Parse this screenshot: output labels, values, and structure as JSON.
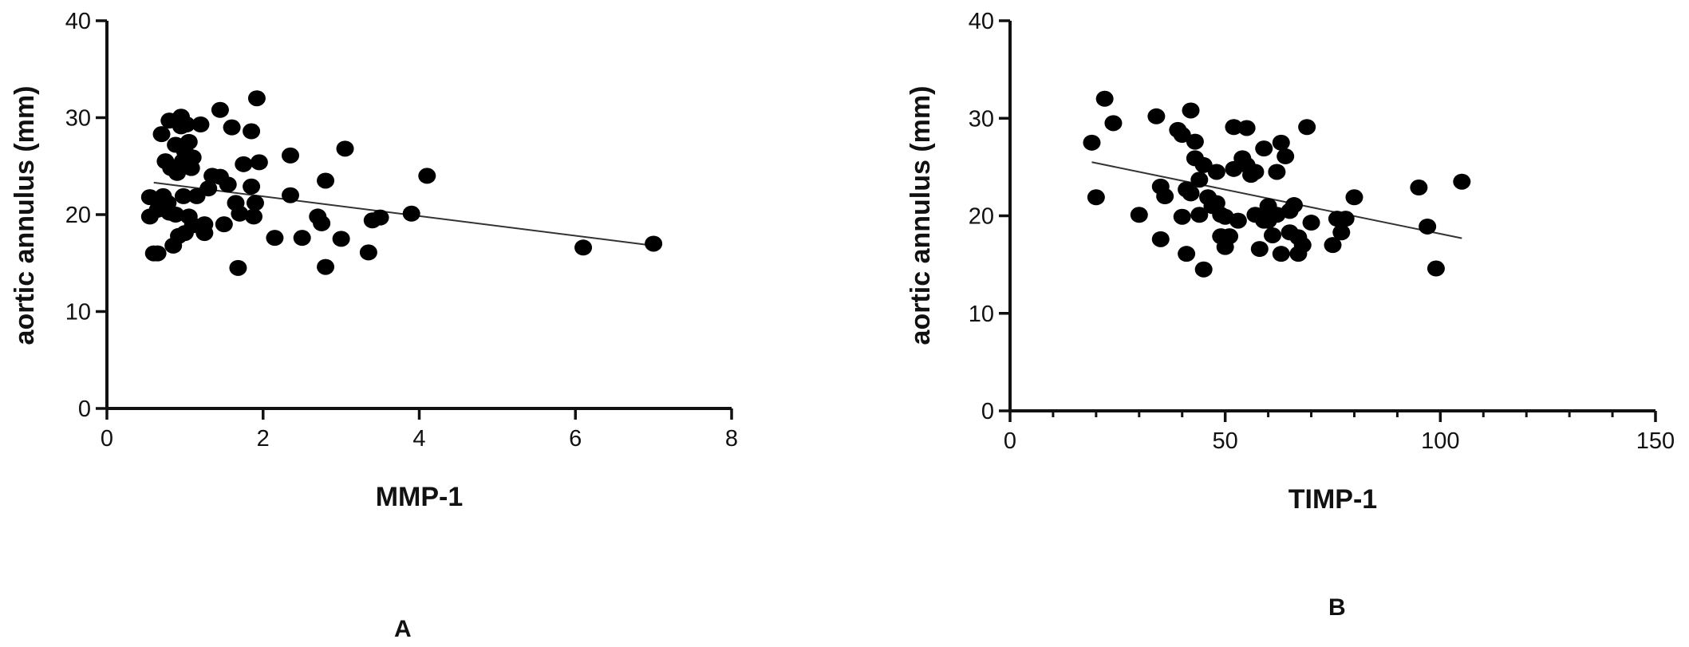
{
  "panels": [
    {
      "label": "A",
      "chart_data": {
        "type": "scatter",
        "title": "",
        "xlabel": "MMP-1",
        "ylabel": "aortic annulus (mm)",
        "xlim": [
          0,
          8
        ],
        "ylim": [
          0,
          40
        ],
        "xticks": [
          0,
          2,
          4,
          6,
          8
        ],
        "yticks": [
          0,
          10,
          20,
          30,
          40
        ],
        "minor_xticks": false,
        "grid": false,
        "trendline": {
          "x1": 0.6,
          "y1": 23.3,
          "x2": 7.0,
          "y2": 16.8
        },
        "points": [
          [
            0.55,
            21.8
          ],
          [
            0.55,
            19.8
          ],
          [
            0.6,
            16.0
          ],
          [
            0.65,
            16.0
          ],
          [
            0.65,
            20.5
          ],
          [
            0.7,
            28.3
          ],
          [
            0.72,
            21.9
          ],
          [
            0.75,
            25.5
          ],
          [
            0.78,
            21.2
          ],
          [
            0.8,
            29.7
          ],
          [
            0.8,
            20.2
          ],
          [
            0.82,
            24.8
          ],
          [
            0.85,
            16.8
          ],
          [
            0.88,
            27.2
          ],
          [
            0.88,
            20.0
          ],
          [
            0.9,
            24.3
          ],
          [
            0.92,
            17.8
          ],
          [
            0.95,
            30.1
          ],
          [
            0.95,
            29.1
          ],
          [
            0.97,
            25.5
          ],
          [
            0.98,
            21.9
          ],
          [
            1.0,
            26.5
          ],
          [
            1.0,
            18.1
          ],
          [
            1.02,
            29.3
          ],
          [
            1.05,
            19.8
          ],
          [
            1.05,
            27.5
          ],
          [
            1.08,
            24.8
          ],
          [
            1.1,
            25.9
          ],
          [
            1.1,
            18.9
          ],
          [
            1.15,
            21.9
          ],
          [
            1.2,
            29.3
          ],
          [
            1.25,
            19.0
          ],
          [
            1.25,
            18.1
          ],
          [
            1.3,
            22.7
          ],
          [
            1.35,
            24.0
          ],
          [
            1.45,
            23.9
          ],
          [
            1.45,
            30.8
          ],
          [
            1.5,
            19.0
          ],
          [
            1.55,
            23.1
          ],
          [
            1.6,
            29.0
          ],
          [
            1.65,
            21.2
          ],
          [
            1.68,
            14.5
          ],
          [
            1.7,
            20.1
          ],
          [
            1.75,
            25.2
          ],
          [
            1.85,
            28.6
          ],
          [
            1.85,
            22.9
          ],
          [
            1.88,
            19.8
          ],
          [
            1.9,
            21.2
          ],
          [
            1.92,
            32.0
          ],
          [
            1.95,
            25.4
          ],
          [
            2.15,
            17.6
          ],
          [
            2.35,
            26.1
          ],
          [
            2.35,
            22.0
          ],
          [
            2.5,
            17.6
          ],
          [
            2.7,
            19.8
          ],
          [
            2.75,
            19.1
          ],
          [
            2.8,
            23.5
          ],
          [
            2.8,
            14.6
          ],
          [
            3.0,
            17.5
          ],
          [
            3.05,
            26.8
          ],
          [
            3.35,
            16.1
          ],
          [
            3.4,
            19.4
          ],
          [
            3.5,
            19.7
          ],
          [
            3.9,
            20.1
          ],
          [
            4.1,
            24.0
          ],
          [
            6.1,
            16.6
          ],
          [
            7.0,
            17.0
          ]
        ]
      }
    },
    {
      "label": "B",
      "chart_data": {
        "type": "scatter",
        "title": "",
        "xlabel": "TIMP-1",
        "ylabel": "aortic annulus (mm)",
        "xlim": [
          0,
          150
        ],
        "ylim": [
          0,
          40
        ],
        "xticks": [
          0,
          50,
          100,
          150
        ],
        "yticks": [
          0,
          10,
          20,
          30,
          40
        ],
        "minor_xticks": true,
        "grid": false,
        "trendline": {
          "x1": 19,
          "y1": 25.5,
          "x2": 105,
          "y2": 17.7
        },
        "points": [
          [
            19,
            27.5
          ],
          [
            20,
            21.9
          ],
          [
            22,
            32.0
          ],
          [
            24,
            29.5
          ],
          [
            30,
            20.1
          ],
          [
            34,
            30.2
          ],
          [
            35,
            17.6
          ],
          [
            35,
            23.0
          ],
          [
            36,
            22.0
          ],
          [
            39,
            28.8
          ],
          [
            40,
            28.3
          ],
          [
            40,
            19.9
          ],
          [
            41,
            16.1
          ],
          [
            41,
            22.7
          ],
          [
            42,
            22.3
          ],
          [
            42,
            30.8
          ],
          [
            43,
            27.6
          ],
          [
            43,
            25.9
          ],
          [
            44,
            23.7
          ],
          [
            44,
            20.1
          ],
          [
            45,
            14.5
          ],
          [
            45,
            25.2
          ],
          [
            46,
            21.9
          ],
          [
            47,
            21.0
          ],
          [
            48,
            24.5
          ],
          [
            48,
            21.3
          ],
          [
            49,
            17.9
          ],
          [
            49,
            20.1
          ],
          [
            50,
            16.8
          ],
          [
            50,
            19.9
          ],
          [
            51,
            17.9
          ],
          [
            52,
            24.8
          ],
          [
            52,
            29.1
          ],
          [
            53,
            19.5
          ],
          [
            54,
            25.9
          ],
          [
            55,
            29.0
          ],
          [
            55,
            25.2
          ],
          [
            56,
            24.2
          ],
          [
            57,
            20.1
          ],
          [
            57,
            24.5
          ],
          [
            58,
            16.6
          ],
          [
            59,
            26.9
          ],
          [
            59,
            19.5
          ],
          [
            60,
            21.0
          ],
          [
            60,
            19.5
          ],
          [
            61,
            18.0
          ],
          [
            62,
            20.1
          ],
          [
            62,
            24.5
          ],
          [
            63,
            27.5
          ],
          [
            63,
            16.1
          ],
          [
            64,
            26.1
          ],
          [
            65,
            18.3
          ],
          [
            65,
            20.5
          ],
          [
            66,
            21.1
          ],
          [
            67,
            17.8
          ],
          [
            67,
            16.1
          ],
          [
            68,
            17.0
          ],
          [
            69,
            29.1
          ],
          [
            70,
            19.3
          ],
          [
            75,
            17.0
          ],
          [
            76,
            19.7
          ],
          [
            77,
            18.3
          ],
          [
            78,
            19.7
          ],
          [
            80,
            21.9
          ],
          [
            95,
            22.9
          ],
          [
            97,
            18.9
          ],
          [
            99,
            14.6
          ],
          [
            105,
            23.5
          ]
        ]
      }
    }
  ]
}
